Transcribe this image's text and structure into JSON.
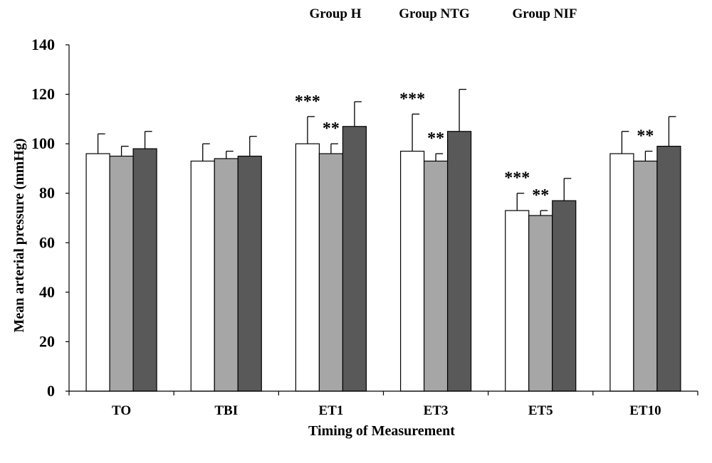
{
  "chart_data": {
    "type": "bar",
    "xlabel": "Timing of Measurement",
    "ylabel": "Mean arterial pressure (mmHg)",
    "ylim": [
      0,
      140
    ],
    "yticks": [
      0,
      20,
      40,
      60,
      80,
      100,
      120,
      140
    ],
    "grid": false,
    "legend_position": "top",
    "categories": [
      "TO",
      "TBI",
      "ET1",
      "ET3",
      "ET5",
      "ET10"
    ],
    "series": [
      {
        "name": "Group H",
        "color": "#ffffff",
        "values": [
          96,
          93,
          100,
          97,
          73,
          96
        ],
        "errors": [
          8,
          7,
          11,
          15,
          7,
          9
        ],
        "annotations": [
          "",
          "",
          "***",
          "***",
          "***",
          ""
        ]
      },
      {
        "name": "Group NTG",
        "color": "#a6a6a6",
        "values": [
          95,
          94,
          96,
          93,
          71,
          93
        ],
        "errors": [
          4,
          3,
          4,
          3,
          2,
          4
        ],
        "annotations": [
          "",
          "",
          "**",
          "**",
          "**",
          "**"
        ]
      },
      {
        "name": "Group NIF",
        "color": "#595959",
        "values": [
          98,
          95,
          107,
          105,
          77,
          99
        ],
        "errors": [
          7,
          8,
          10,
          17,
          9,
          12
        ],
        "annotations": [
          "",
          "",
          "",
          "",
          "",
          ""
        ]
      }
    ]
  }
}
